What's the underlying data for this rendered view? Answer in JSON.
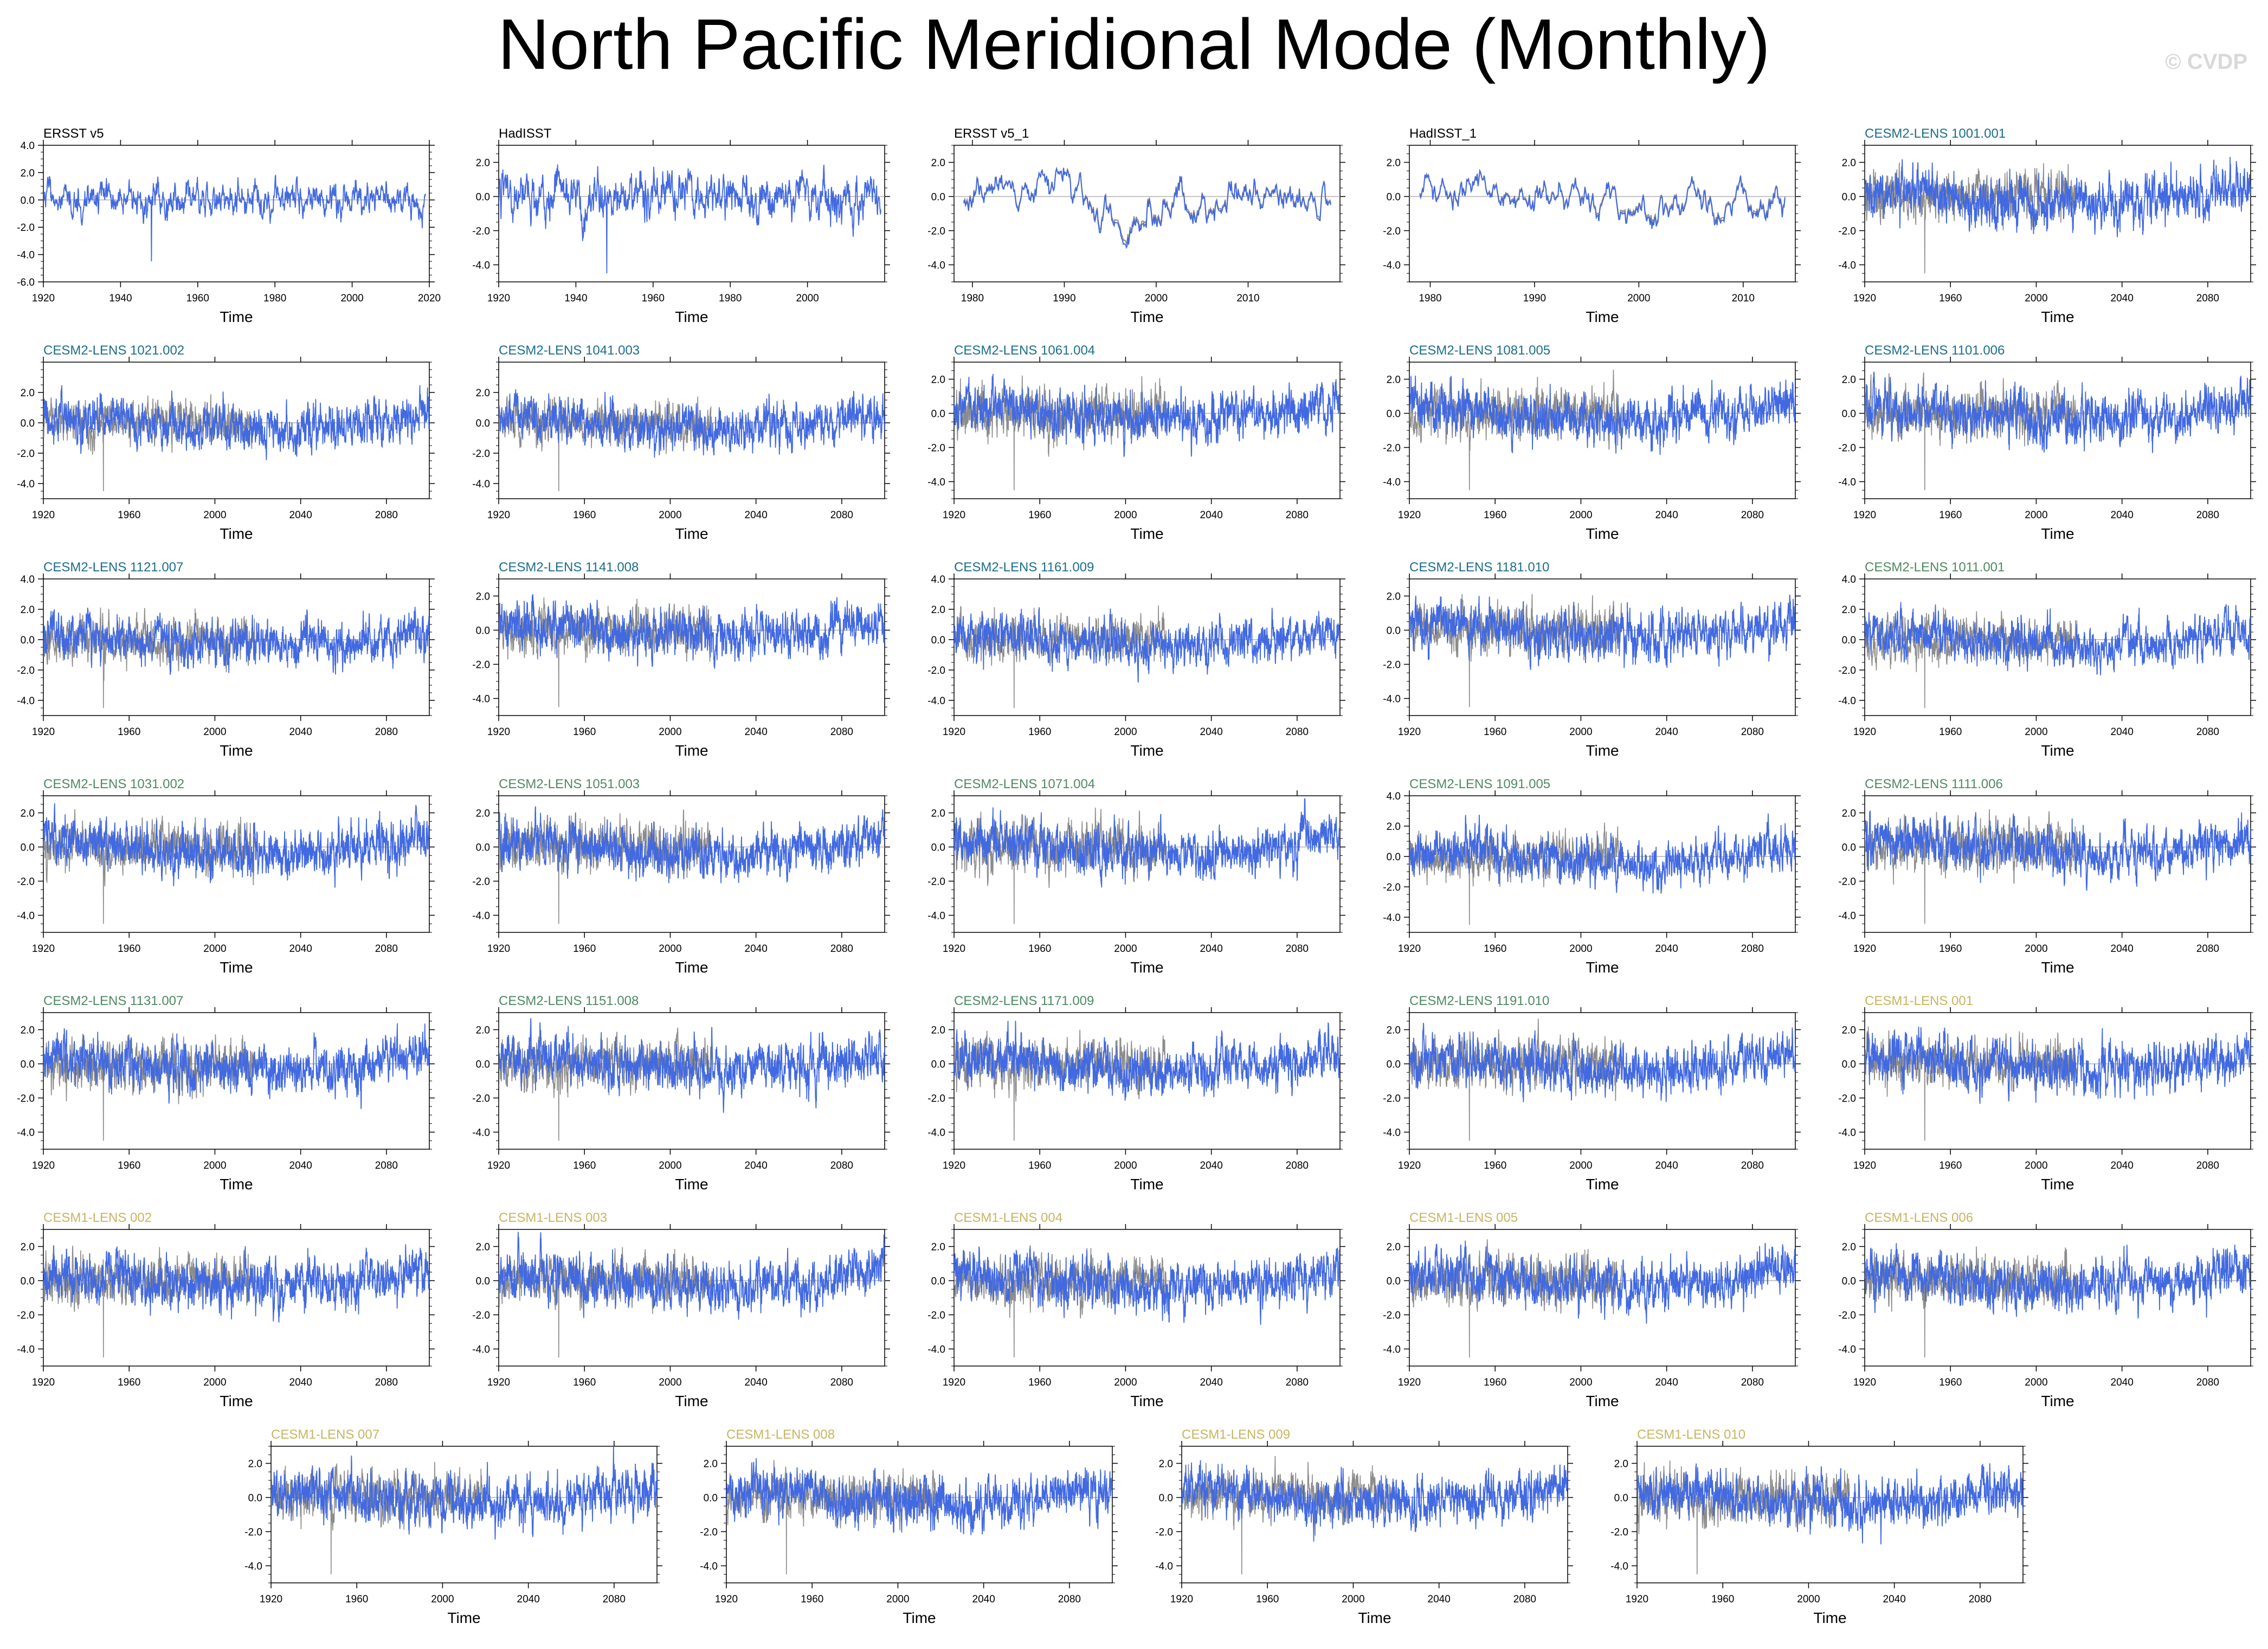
{
  "page": {
    "title": "North Pacific Meridional Mode (Monthly)",
    "watermark": "© CVDP"
  },
  "colors": {
    "obs_title": "#000000",
    "cesm2_1": "#1c6e8c",
    "cesm2_2": "#4e8a63",
    "cesm1": "#c8b560",
    "model_line": "#4169e1",
    "obs_line": "#8c8c8c",
    "zero_line": "#b0b0b0"
  },
  "chart_data": [
    {
      "type": "line",
      "title": "ERSST v5",
      "title_color": "obs_title",
      "xlabel": "Time",
      "xlim": [
        1920,
        2020
      ],
      "xticks": [
        1920,
        1940,
        1960,
        1980,
        2000,
        2020
      ],
      "ylim": [
        -6,
        4
      ],
      "yticks": [
        "4.0",
        "2.0",
        "0.0",
        "-2.0",
        "-4.0",
        "-6.0"
      ],
      "series": [
        {
          "x_range": [
            1920,
            2019
          ],
          "seed": 11,
          "amp": 0.9,
          "style": "obs_as_model",
          "spike": [
            1948,
            -4.5
          ]
        }
      ]
    },
    {
      "type": "line",
      "title": "HadISST",
      "title_color": "obs_title",
      "xlabel": "Time",
      "xlim": [
        1920,
        2020
      ],
      "xticks": [
        1920,
        1940,
        1960,
        1980,
        2000
      ],
      "ylim": [
        -5,
        3
      ],
      "yticks": [
        "2.0",
        "0.0",
        "-2.0",
        "-4.0"
      ],
      "series": [
        {
          "x_range": [
            1920,
            2019
          ],
          "seed": 12,
          "amp": 1.0,
          "style": "obs_as_model",
          "spike": [
            1948,
            -4.5
          ]
        }
      ]
    },
    {
      "type": "line",
      "title": "ERSST v5_1",
      "title_color": "obs_title",
      "xlabel": "Time",
      "xlim": [
        1978,
        2020
      ],
      "xticks": [
        1980,
        1990,
        2000,
        2010
      ],
      "ylim": [
        -5,
        3
      ],
      "yticks": [
        "2.0",
        "0.0",
        "-2.0",
        "-4.0"
      ],
      "series": [
        {
          "x_range": [
            1979,
            2019
          ],
          "seed": 13,
          "amp": 0.9,
          "style": "smooth"
        }
      ]
    },
    {
      "type": "line",
      "title": "HadISST_1",
      "title_color": "obs_title",
      "xlabel": "Time",
      "xlim": [
        1978,
        2015
      ],
      "xticks": [
        1980,
        1990,
        2000,
        2010
      ],
      "ylim": [
        -5,
        3
      ],
      "yticks": [
        "2.0",
        "0.0",
        "-2.0",
        "-4.0"
      ],
      "series": [
        {
          "x_range": [
            1979,
            2014
          ],
          "seed": 14,
          "amp": 0.9,
          "style": "smooth"
        }
      ]
    },
    {
      "type": "line",
      "title": "CESM2-LENS 1001.001",
      "title_color": "cesm2_1",
      "xlabel": "Time",
      "xlim": [
        1920,
        2100
      ],
      "xticks": [
        1920,
        1960,
        2000,
        2040,
        2080
      ],
      "ylim": [
        -5,
        3
      ],
      "yticks": [
        "2.0",
        "0.0",
        "-2.0",
        "-4.0"
      ],
      "series": [
        {
          "seed": 15
        }
      ]
    },
    {
      "type": "line",
      "title": "CESM2-LENS 1021.002",
      "title_color": "cesm2_1",
      "xlabel": "Time",
      "xlim": [
        1920,
        2100
      ],
      "xticks": [
        1920,
        1960,
        2000,
        2040,
        2080
      ],
      "ylim": [
        -5,
        4
      ],
      "yticks": [
        "2.0",
        "0.0",
        "-2.0",
        "-4.0"
      ],
      "series": [
        {
          "seed": 21
        }
      ]
    },
    {
      "type": "line",
      "title": "CESM2-LENS 1041.003",
      "title_color": "cesm2_1",
      "xlabel": "Time",
      "xlim": [
        1920,
        2100
      ],
      "xticks": [
        1920,
        1960,
        2000,
        2040,
        2080
      ],
      "ylim": [
        -5,
        4
      ],
      "yticks": [
        "2.0",
        "0.0",
        "-2.0",
        "-4.0"
      ],
      "series": [
        {
          "seed": 22
        }
      ]
    },
    {
      "type": "line",
      "title": "CESM2-LENS 1061.004",
      "title_color": "cesm2_1",
      "xlabel": "Time",
      "xlim": [
        1920,
        2100
      ],
      "xticks": [
        1920,
        1960,
        2000,
        2040,
        2080
      ],
      "ylim": [
        -5,
        3
      ],
      "yticks": [
        "2.0",
        "0.0",
        "-2.0",
        "-4.0"
      ],
      "series": [
        {
          "seed": 23
        }
      ]
    },
    {
      "type": "line",
      "title": "CESM2-LENS 1081.005",
      "title_color": "cesm2_1",
      "xlabel": "Time",
      "xlim": [
        1920,
        2100
      ],
      "xticks": [
        1920,
        1960,
        2000,
        2040,
        2080
      ],
      "ylim": [
        -5,
        3
      ],
      "yticks": [
        "2.0",
        "0.0",
        "-2.0",
        "-4.0"
      ],
      "series": [
        {
          "seed": 24
        }
      ]
    },
    {
      "type": "line",
      "title": "CESM2-LENS 1101.006",
      "title_color": "cesm2_1",
      "xlabel": "Time",
      "xlim": [
        1920,
        2100
      ],
      "xticks": [
        1920,
        1960,
        2000,
        2040,
        2080
      ],
      "ylim": [
        -5,
        3
      ],
      "yticks": [
        "2.0",
        "0.0",
        "-2.0",
        "-4.0"
      ],
      "series": [
        {
          "seed": 25
        }
      ]
    },
    {
      "type": "line",
      "title": "CESM2-LENS 1121.007",
      "title_color": "cesm2_1",
      "xlabel": "Time",
      "xlim": [
        1920,
        2100
      ],
      "xticks": [
        1920,
        1960,
        2000,
        2040,
        2080
      ],
      "ylim": [
        -5,
        4
      ],
      "yticks": [
        "4.0",
        "2.0",
        "0.0",
        "-2.0",
        "-4.0"
      ],
      "series": [
        {
          "seed": 31
        }
      ]
    },
    {
      "type": "line",
      "title": "CESM2-LENS 1141.008",
      "title_color": "cesm2_1",
      "xlabel": "Time",
      "xlim": [
        1920,
        2100
      ],
      "xticks": [
        1920,
        1960,
        2000,
        2040,
        2080
      ],
      "ylim": [
        -5,
        3
      ],
      "yticks": [
        "2.0",
        "0.0",
        "-2.0",
        "-4.0"
      ],
      "series": [
        {
          "seed": 32
        }
      ]
    },
    {
      "type": "line",
      "title": "CESM2-LENS 1161.009",
      "title_color": "cesm2_1",
      "xlabel": "Time",
      "xlim": [
        1920,
        2100
      ],
      "xticks": [
        1920,
        1960,
        2000,
        2040,
        2080
      ],
      "ylim": [
        -5,
        4
      ],
      "yticks": [
        "4.0",
        "2.0",
        "0.0",
        "-2.0",
        "-4.0"
      ],
      "series": [
        {
          "seed": 33
        }
      ]
    },
    {
      "type": "line",
      "title": "CESM2-LENS 1181.010",
      "title_color": "cesm2_1",
      "xlabel": "Time",
      "xlim": [
        1920,
        2100
      ],
      "xticks": [
        1920,
        1960,
        2000,
        2040,
        2080
      ],
      "ylim": [
        -5,
        3
      ],
      "yticks": [
        "2.0",
        "0.0",
        "-2.0",
        "-4.0"
      ],
      "series": [
        {
          "seed": 34
        }
      ]
    },
    {
      "type": "line",
      "title": "CESM2-LENS 1011.001",
      "title_color": "cesm2_2",
      "xlabel": "Time",
      "xlim": [
        1920,
        2100
      ],
      "xticks": [
        1920,
        1960,
        2000,
        2040,
        2080
      ],
      "ylim": [
        -5,
        4
      ],
      "yticks": [
        "4.0",
        "2.0",
        "0.0",
        "-2.0",
        "-4.0"
      ],
      "series": [
        {
          "seed": 35
        }
      ]
    },
    {
      "type": "line",
      "title": "CESM2-LENS 1031.002",
      "title_color": "cesm2_2",
      "xlabel": "Time",
      "xlim": [
        1920,
        2100
      ],
      "xticks": [
        1920,
        1960,
        2000,
        2040,
        2080
      ],
      "ylim": [
        -5,
        3
      ],
      "yticks": [
        "2.0",
        "0.0",
        "-2.0",
        "-4.0"
      ],
      "series": [
        {
          "seed": 41
        }
      ]
    },
    {
      "type": "line",
      "title": "CESM2-LENS 1051.003",
      "title_color": "cesm2_2",
      "xlabel": "Time",
      "xlim": [
        1920,
        2100
      ],
      "xticks": [
        1920,
        1960,
        2000,
        2040,
        2080
      ],
      "ylim": [
        -5,
        3
      ],
      "yticks": [
        "2.0",
        "0.0",
        "-2.0",
        "-4.0"
      ],
      "series": [
        {
          "seed": 42
        }
      ]
    },
    {
      "type": "line",
      "title": "CESM2-LENS 1071.004",
      "title_color": "cesm2_2",
      "xlabel": "Time",
      "xlim": [
        1920,
        2100
      ],
      "xticks": [
        1920,
        1960,
        2000,
        2040,
        2080
      ],
      "ylim": [
        -5,
        3
      ],
      "yticks": [
        "2.0",
        "0.0",
        "-2.0",
        "-4.0"
      ],
      "series": [
        {
          "seed": 43
        }
      ]
    },
    {
      "type": "line",
      "title": "CESM2-LENS 1091.005",
      "title_color": "cesm2_2",
      "xlabel": "Time",
      "xlim": [
        1920,
        2100
      ],
      "xticks": [
        1920,
        1960,
        2000,
        2040,
        2080
      ],
      "ylim": [
        -5,
        4
      ],
      "yticks": [
        "4.0",
        "2.0",
        "0.0",
        "-2.0",
        "-4.0"
      ],
      "series": [
        {
          "seed": 44
        }
      ]
    },
    {
      "type": "line",
      "title": "CESM2-LENS 1111.006",
      "title_color": "cesm2_2",
      "xlabel": "Time",
      "xlim": [
        1920,
        2100
      ],
      "xticks": [
        1920,
        1960,
        2000,
        2040,
        2080
      ],
      "ylim": [
        -5,
        3
      ],
      "yticks": [
        "2.0",
        "0.0",
        "-2.0",
        "-4.0"
      ],
      "series": [
        {
          "seed": 45
        }
      ]
    },
    {
      "type": "line",
      "title": "CESM2-LENS 1131.007",
      "title_color": "cesm2_2",
      "xlabel": "Time",
      "xlim": [
        1920,
        2100
      ],
      "xticks": [
        1920,
        1960,
        2000,
        2040,
        2080
      ],
      "ylim": [
        -5,
        3
      ],
      "yticks": [
        "2.0",
        "0.0",
        "-2.0",
        "-4.0"
      ],
      "series": [
        {
          "seed": 51
        }
      ]
    },
    {
      "type": "line",
      "title": "CESM2-LENS 1151.008",
      "title_color": "cesm2_2",
      "xlabel": "Time",
      "xlim": [
        1920,
        2100
      ],
      "xticks": [
        1920,
        1960,
        2000,
        2040,
        2080
      ],
      "ylim": [
        -5,
        3
      ],
      "yticks": [
        "2.0",
        "0.0",
        "-2.0",
        "-4.0"
      ],
      "series": [
        {
          "seed": 52
        }
      ]
    },
    {
      "type": "line",
      "title": "CESM2-LENS 1171.009",
      "title_color": "cesm2_2",
      "xlabel": "Time",
      "xlim": [
        1920,
        2100
      ],
      "xticks": [
        1920,
        1960,
        2000,
        2040,
        2080
      ],
      "ylim": [
        -5,
        3
      ],
      "yticks": [
        "2.0",
        "0.0",
        "-2.0",
        "-4.0"
      ],
      "series": [
        {
          "seed": 53
        }
      ]
    },
    {
      "type": "line",
      "title": "CESM2-LENS 1191.010",
      "title_color": "cesm2_2",
      "xlabel": "Time",
      "xlim": [
        1920,
        2100
      ],
      "xticks": [
        1920,
        1960,
        2000,
        2040,
        2080
      ],
      "ylim": [
        -5,
        3
      ],
      "yticks": [
        "2.0",
        "0.0",
        "-2.0",
        "-4.0"
      ],
      "series": [
        {
          "seed": 54
        }
      ]
    },
    {
      "type": "line",
      "title": "CESM1-LENS 001",
      "title_color": "cesm1",
      "xlabel": "Time",
      "xlim": [
        1920,
        2100
      ],
      "xticks": [
        1920,
        1960,
        2000,
        2040,
        2080
      ],
      "ylim": [
        -5,
        3
      ],
      "yticks": [
        "2.0",
        "0.0",
        "-2.0",
        "-4.0"
      ],
      "series": [
        {
          "seed": 55
        }
      ]
    },
    {
      "type": "line",
      "title": "CESM1-LENS 002",
      "title_color": "cesm1",
      "xlabel": "Time",
      "xlim": [
        1920,
        2100
      ],
      "xticks": [
        1920,
        1960,
        2000,
        2040,
        2080
      ],
      "ylim": [
        -5,
        3
      ],
      "yticks": [
        "2.0",
        "0.0",
        "-2.0",
        "-4.0"
      ],
      "series": [
        {
          "seed": 61
        }
      ]
    },
    {
      "type": "line",
      "title": "CESM1-LENS 003",
      "title_color": "cesm1",
      "xlabel": "Time",
      "xlim": [
        1920,
        2100
      ],
      "xticks": [
        1920,
        1960,
        2000,
        2040,
        2080
      ],
      "ylim": [
        -5,
        3
      ],
      "yticks": [
        "2.0",
        "0.0",
        "-2.0",
        "-4.0"
      ],
      "series": [
        {
          "seed": 62
        }
      ]
    },
    {
      "type": "line",
      "title": "CESM1-LENS 004",
      "title_color": "cesm1",
      "xlabel": "Time",
      "xlim": [
        1920,
        2100
      ],
      "xticks": [
        1920,
        1960,
        2000,
        2040,
        2080
      ],
      "ylim": [
        -5,
        3
      ],
      "yticks": [
        "2.0",
        "0.0",
        "-2.0",
        "-4.0"
      ],
      "series": [
        {
          "seed": 63
        }
      ]
    },
    {
      "type": "line",
      "title": "CESM1-LENS 005",
      "title_color": "cesm1",
      "xlabel": "Time",
      "xlim": [
        1920,
        2100
      ],
      "xticks": [
        1920,
        1960,
        2000,
        2040,
        2080
      ],
      "ylim": [
        -5,
        3
      ],
      "yticks": [
        "2.0",
        "0.0",
        "-2.0",
        "-4.0"
      ],
      "series": [
        {
          "seed": 64
        }
      ]
    },
    {
      "type": "line",
      "title": "CESM1-LENS 006",
      "title_color": "cesm1",
      "xlabel": "Time",
      "xlim": [
        1920,
        2100
      ],
      "xticks": [
        1920,
        1960,
        2000,
        2040,
        2080
      ],
      "ylim": [
        -5,
        3
      ],
      "yticks": [
        "2.0",
        "0.0",
        "-2.0",
        "-4.0"
      ],
      "series": [
        {
          "seed": 65
        }
      ]
    },
    {
      "type": "line",
      "title": "CESM1-LENS 007",
      "title_color": "cesm1",
      "xlabel": "Time",
      "xlim": [
        1920,
        2100
      ],
      "xticks": [
        1920,
        1960,
        2000,
        2040,
        2080
      ],
      "ylim": [
        -5,
        3
      ],
      "yticks": [
        "2.0",
        "0.0",
        "-2.0",
        "-4.0"
      ],
      "series": [
        {
          "seed": 71
        }
      ]
    },
    {
      "type": "line",
      "title": "CESM1-LENS 008",
      "title_color": "cesm1",
      "xlabel": "Time",
      "xlim": [
        1920,
        2100
      ],
      "xticks": [
        1920,
        1960,
        2000,
        2040,
        2080
      ],
      "ylim": [
        -5,
        3
      ],
      "yticks": [
        "2.0",
        "0.0",
        "-2.0",
        "-4.0"
      ],
      "series": [
        {
          "seed": 72
        }
      ]
    },
    {
      "type": "line",
      "title": "CESM1-LENS 009",
      "title_color": "cesm1",
      "xlabel": "Time",
      "xlim": [
        1920,
        2100
      ],
      "xticks": [
        1920,
        1960,
        2000,
        2040,
        2080
      ],
      "ylim": [
        -5,
        3
      ],
      "yticks": [
        "2.0",
        "0.0",
        "-2.0",
        "-4.0"
      ],
      "series": [
        {
          "seed": 73
        }
      ]
    },
    {
      "type": "line",
      "title": "CESM1-LENS 010",
      "title_color": "cesm1",
      "xlabel": "Time",
      "xlim": [
        1920,
        2100
      ],
      "xticks": [
        1920,
        1960,
        2000,
        2040,
        2080
      ],
      "ylim": [
        -5,
        3
      ],
      "yticks": [
        "2.0",
        "0.0",
        "-2.0",
        "-4.0"
      ],
      "series": [
        {
          "seed": 74
        }
      ]
    }
  ]
}
